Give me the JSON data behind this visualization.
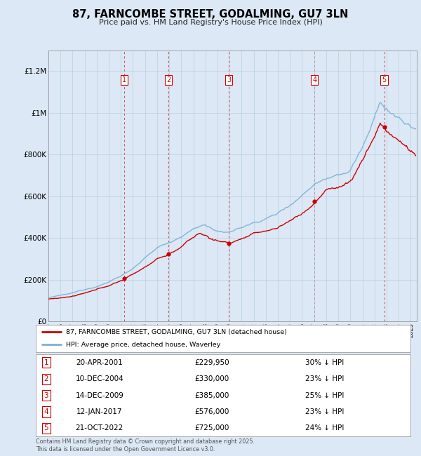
{
  "title": "87, FARNCOMBE STREET, GODALMING, GU7 3LN",
  "subtitle": "Price paid vs. HM Land Registry's House Price Index (HPI)",
  "ylim": [
    0,
    1300000
  ],
  "yticks": [
    0,
    200000,
    400000,
    600000,
    800000,
    1000000,
    1200000
  ],
  "ytick_labels": [
    "£0",
    "£200K",
    "£400K",
    "£600K",
    "£800K",
    "£1M",
    "£1.2M"
  ],
  "background_color": "#dce8f5",
  "plot_bg_color": "#dce8f5",
  "transactions": [
    {
      "num": 1,
      "date": "20-APR-2001",
      "date_x": 2001.29,
      "price": 229950,
      "price_str": "£229,950",
      "label": "30% ↓ HPI"
    },
    {
      "num": 2,
      "date": "10-DEC-2004",
      "date_x": 2004.94,
      "price": 330000,
      "price_str": "£330,000",
      "label": "23% ↓ HPI"
    },
    {
      "num": 3,
      "date": "14-DEC-2009",
      "date_x": 2009.95,
      "price": 385000,
      "price_str": "£385,000",
      "label": "25% ↓ HPI"
    },
    {
      "num": 4,
      "date": "12-JAN-2017",
      "date_x": 2017.04,
      "price": 576000,
      "price_str": "£576,000",
      "label": "23% ↓ HPI"
    },
    {
      "num": 5,
      "date": "21-OCT-2022",
      "date_x": 2022.8,
      "price": 725000,
      "price_str": "£725,000",
      "label": "24% ↓ HPI"
    }
  ],
  "legend_label_red": "87, FARNCOMBE STREET, GODALMING, GU7 3LN (detached house)",
  "legend_label_blue": "HPI: Average price, detached house, Waverley",
  "footer": "Contains HM Land Registry data © Crown copyright and database right 2025.\nThis data is licensed under the Open Government Licence v3.0.",
  "red_color": "#cc0000",
  "blue_color": "#7ab0d4",
  "xmin": 1995,
  "xmax": 2025.5
}
